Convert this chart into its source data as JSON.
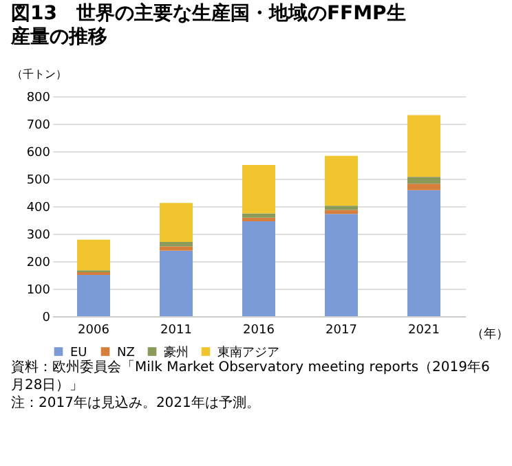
{
  "chart_data": {
    "type": "bar",
    "title": "図13　世界の主要な生産国・地域のFFMP生産量の推移",
    "ylabel": "（千トン）",
    "xlabel": "（年）",
    "categories": [
      "2006",
      "2011",
      "2016",
      "2017",
      "2021"
    ],
    "stacked": true,
    "series": [
      {
        "name": "EU",
        "color": "#7a9bd6",
        "values": [
          150,
          238,
          345,
          372,
          458
        ]
      },
      {
        "name": "NZ",
        "color": "#d67f3c",
        "values": [
          10,
          16,
          13,
          14,
          24
        ]
      },
      {
        "name": "豪州",
        "color": "#8a9a5b",
        "values": [
          7,
          16,
          16,
          16,
          25
        ]
      },
      {
        "name": "東南アジア",
        "color": "#f0c530",
        "values": [
          111,
          142,
          176,
          181,
          224
        ]
      }
    ],
    "ylim": [
      0,
      800
    ],
    "yticks": [
      0,
      100,
      200,
      300,
      400,
      500,
      600,
      700,
      800
    ],
    "grid": "y",
    "legend": "bottom",
    "annotations": [
      "資料：欧州委員会「Milk Market Observatory meeting reports（2019年6月28日）」",
      "注：2017年は見込み。2021年は予測。"
    ]
  }
}
